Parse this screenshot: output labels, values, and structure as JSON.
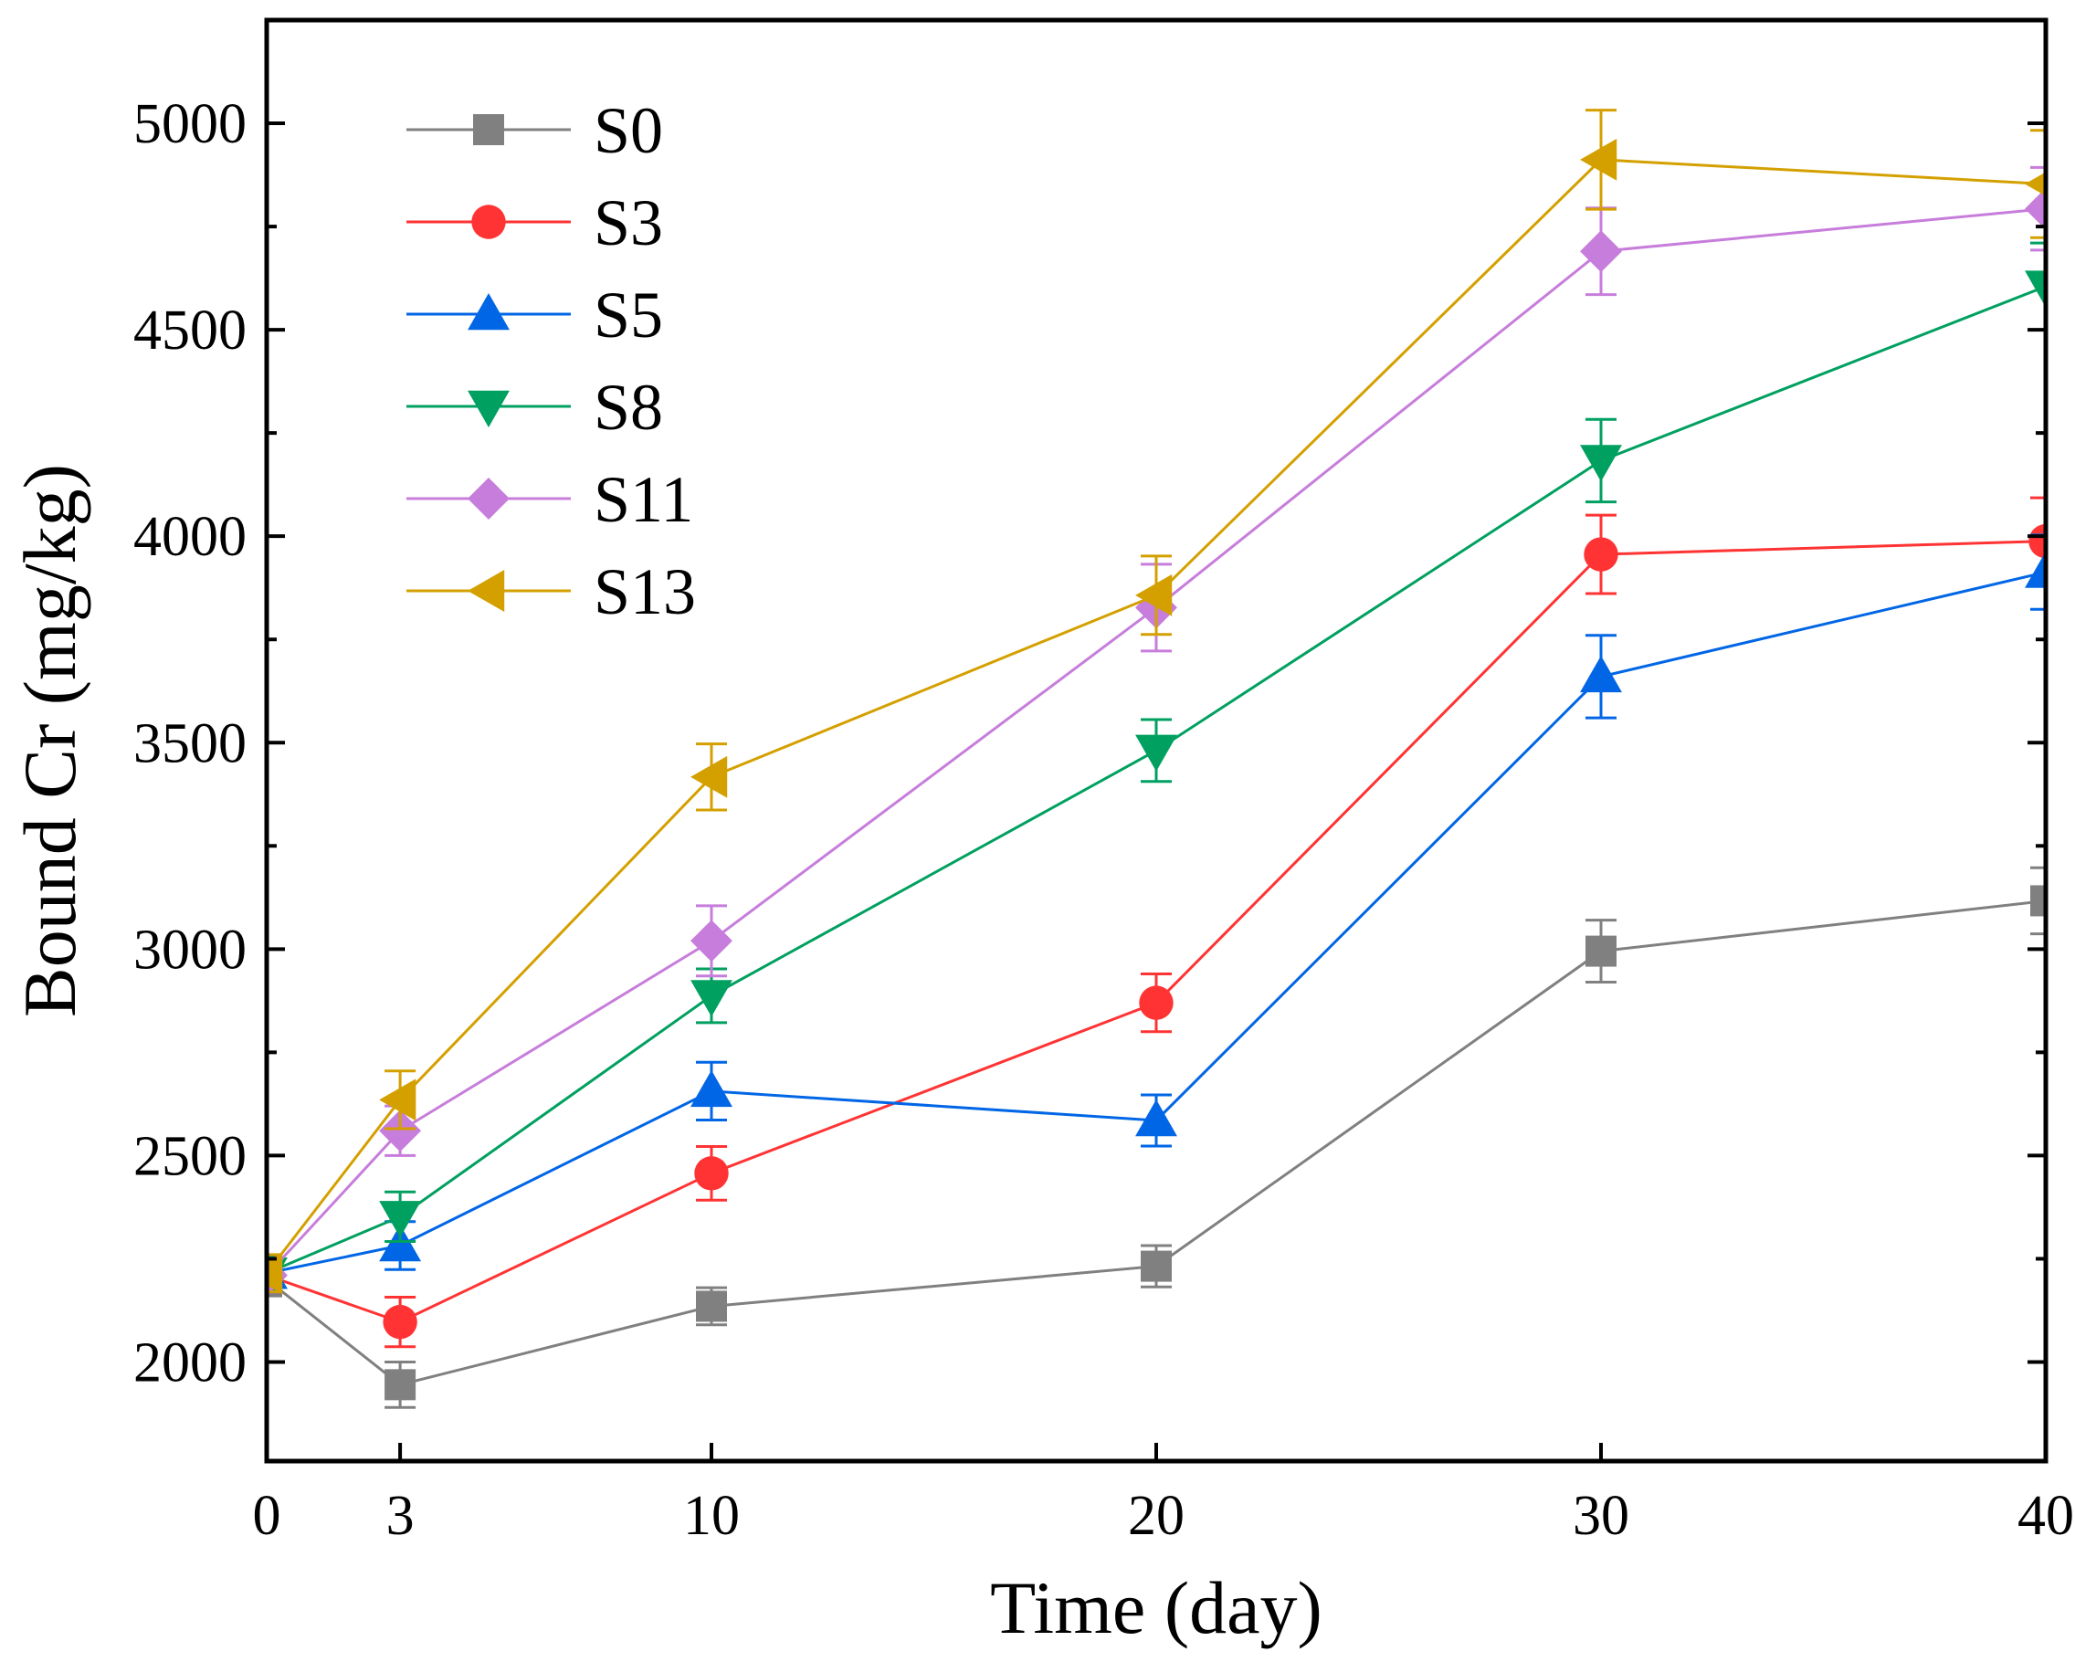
{
  "chart_data": {
    "type": "line",
    "title": "",
    "xlabel": "Time (day)",
    "ylabel": "Bound Cr (mg/kg)",
    "xlim": [
      0,
      40
    ],
    "ylim": [
      1760,
      5250
    ],
    "xticks": [
      0,
      3,
      10,
      20,
      30,
      40
    ],
    "yticks": [
      2000,
      2500,
      3000,
      3500,
      4000,
      4500,
      5000
    ],
    "legend_position": "top-left",
    "x": [
      0,
      3,
      10,
      20,
      30,
      40
    ],
    "series": [
      {
        "name": "S0",
        "color": "#808080",
        "marker": "square",
        "values": [
          2200,
          1945,
          2135,
          2232,
          2995,
          3117
        ],
        "errors": [
          40,
          55,
          45,
          50,
          75,
          80
        ]
      },
      {
        "name": "S3",
        "color": "#ff3333",
        "marker": "circle",
        "values": [
          2210,
          2097,
          2457,
          2870,
          3956,
          3988
        ],
        "errors": [
          40,
          60,
          65,
          70,
          95,
          105
        ]
      },
      {
        "name": "S5",
        "color": "#0066e6",
        "marker": "triangle-up",
        "values": [
          2215,
          2282,
          2656,
          2585,
          3660,
          3913
        ],
        "errors": [
          40,
          58,
          70,
          62,
          100,
          90
        ]
      },
      {
        "name": "S8",
        "color": "#00a060",
        "marker": "triangle-down",
        "values": [
          2215,
          2352,
          2887,
          3481,
          4183,
          4605
        ],
        "errors": [
          40,
          60,
          65,
          75,
          100,
          105
        ]
      },
      {
        "name": "S11",
        "color": "#c77ddb",
        "marker": "diamond",
        "values": [
          2210,
          2560,
          3020,
          3827,
          4690,
          4793
        ],
        "errors": [
          40,
          60,
          85,
          105,
          105,
          100
        ]
      },
      {
        "name": "S13",
        "color": "#d4a000",
        "marker": "triangle-left",
        "values": [
          2215,
          2635,
          3417,
          3857,
          4912,
          4853
        ],
        "errors": [
          45,
          70,
          80,
          95,
          120,
          130
        ]
      }
    ]
  }
}
